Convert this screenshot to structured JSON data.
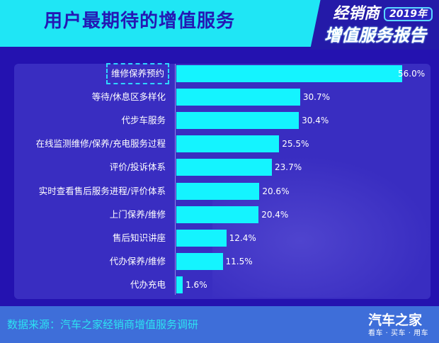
{
  "header": {
    "title": "用户最期待的增值服务",
    "badge_line1": "经销商",
    "badge_year": "2019年",
    "badge_line2": "增值服务报告"
  },
  "colors": {
    "header_bg": "#1fe6f5",
    "page_bg": "#2412b0",
    "panel_bg": "#3b2fc2",
    "bar": "#14f4ff",
    "footer_bg": "#3e6ed9",
    "source_text": "#2de3f2"
  },
  "chart_data": {
    "type": "bar",
    "orientation": "horizontal",
    "title": "用户最期待的增值服务",
    "xlabel": "",
    "ylabel": "",
    "unit": "%",
    "xlim": [
      0,
      56
    ],
    "grid": false,
    "categories": [
      "维修保养预约",
      "等待/休息区多样化",
      "代步车服务",
      "在线监测维修/保养/充电服务过程",
      "评价/投诉体系",
      "实时查看售后服务进程/评价体系",
      "上门保养/维修",
      "售后知识讲座",
      "代办保养/维修",
      "代办充电"
    ],
    "values": [
      56.0,
      30.7,
      30.4,
      25.5,
      23.7,
      20.6,
      20.4,
      12.4,
      11.5,
      1.6
    ],
    "value_labels": [
      "56.0%",
      "30.7%",
      "30.4%",
      "25.5%",
      "23.7%",
      "20.6%",
      "20.4%",
      "12.4%",
      "11.5%",
      "1.6%"
    ],
    "highlighted_category": "维修保养预约"
  },
  "footer": {
    "source": "数据来源：汽车之家经销商增值服务调研",
    "logo_main": "汽车之家",
    "logo_sub": "看车 · 买车 · 用车"
  }
}
